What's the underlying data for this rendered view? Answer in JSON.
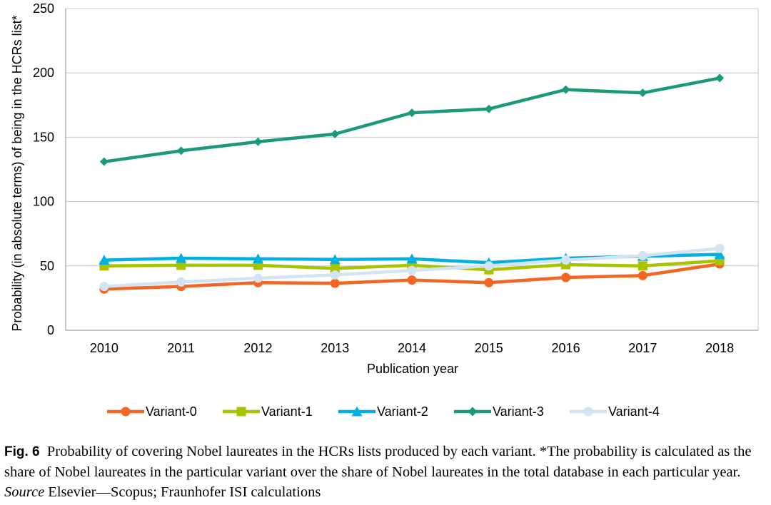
{
  "chart_data": {
    "type": "line",
    "title": "",
    "xlabel": "Publication year",
    "ylabel": "Probability (in absolute terms) of being in the HCRs list*",
    "ylim": [
      0,
      250
    ],
    "yticks": [
      0,
      50,
      100,
      150,
      200,
      250
    ],
    "grid": true,
    "legend_position": "bottom",
    "categories": [
      "2010",
      "2011",
      "2012",
      "2013",
      "2014",
      "2015",
      "2016",
      "2017",
      "2018"
    ],
    "series": [
      {
        "name": "Variant-0",
        "color": "#f26522",
        "marker": "circle",
        "values": [
          32,
          34,
          37,
          36.5,
          39,
          37,
          41,
          42.5,
          51.5
        ]
      },
      {
        "name": "Variant-1",
        "color": "#a8c400",
        "marker": "square",
        "values": [
          50,
          50.5,
          50.5,
          48,
          50.5,
          47,
          51,
          50,
          54
        ]
      },
      {
        "name": "Variant-2",
        "color": "#00b0e0",
        "marker": "triangle",
        "values": [
          54.5,
          56,
          55.5,
          55,
          55.5,
          52.5,
          56,
          57.5,
          59
        ]
      },
      {
        "name": "Variant-3",
        "color": "#1a9a78",
        "marker": "diamond",
        "values": [
          131,
          139.5,
          146.5,
          152.5,
          169,
          172,
          187,
          184.5,
          196
        ]
      },
      {
        "name": "Variant-4",
        "color": "#d2e3f2",
        "marker": "circle",
        "values": [
          34,
          37.5,
          40.5,
          43,
          46.5,
          50,
          54.5,
          58,
          63.5
        ]
      }
    ]
  },
  "caption": {
    "fig_label": "Fig. 6",
    "text_before_source": "Probability of covering Nobel laureates in the HCRs lists produced by each variant. *The probability is calculated as the share of Nobel laureates in the particular variant over the share of Nobel laureates in the total database in each particular year.",
    "source_label": "Source",
    "source_text": "Elsevier—Scopus; Fraunhofer ISI calculations"
  }
}
